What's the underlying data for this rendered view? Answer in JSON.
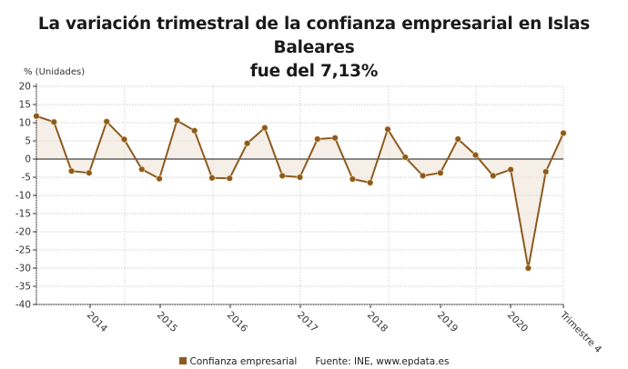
{
  "title_line1": "La variación trimestral de la confianza empresarial en Islas Baleares",
  "title_line2": "fue del 7,13%",
  "chart_data": {
    "type": "line",
    "title": "La variación trimestral de la confianza empresarial en Islas Baleares fue del 7,13%",
    "ylabel": "% (Unidades)",
    "xlabel": "",
    "ylim": [
      -40,
      20
    ],
    "yticks": [
      20,
      15,
      10,
      5,
      0,
      -5,
      -10,
      -15,
      -20,
      -25,
      -30,
      -35,
      -40
    ],
    "xtick_labels": [
      "2014",
      "2015",
      "2016",
      "2017",
      "2018",
      "2019",
      "2020",
      "Trimestre 4"
    ],
    "grid": true,
    "legend_position": "bottom",
    "series": [
      {
        "name": "Confianza empresarial",
        "color": "#8c5a1e",
        "values": [
          11.8,
          10.2,
          -3.3,
          -3.8,
          10.3,
          5.4,
          -2.8,
          -5.4,
          10.6,
          7.8,
          -5.2,
          -5.3,
          4.3,
          8.6,
          -4.6,
          -5.0,
          5.5,
          5.8,
          -5.5,
          -6.5,
          8.2,
          0.5,
          -4.6,
          -3.8,
          5.5,
          1.1,
          -4.6,
          -2.9,
          -30.0,
          -3.5,
          7.13
        ]
      }
    ]
  },
  "legend": {
    "series_label": "Confianza empresarial",
    "source": "Fuente: INE, www.epdata.es"
  }
}
